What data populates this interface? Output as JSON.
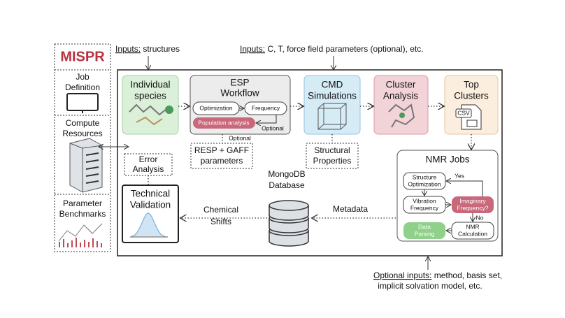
{
  "sidebar": {
    "logo": "MISPR",
    "items": [
      {
        "lines": [
          "Job",
          "Definition"
        ]
      },
      {
        "lines": [
          "Compute",
          "Resources"
        ]
      },
      {
        "lines": [
          "Parameter",
          "Benchmarks"
        ]
      }
    ]
  },
  "inputs": [
    {
      "label": "Inputs:",
      "text": " structures"
    },
    {
      "label": "Inputs:",
      "text": " C, T, force field parameters (optional), etc."
    }
  ],
  "steps": [
    {
      "lines": [
        "Individual",
        "species"
      ]
    },
    {
      "lines": [
        "ESP",
        "Workflow"
      ],
      "substeps": [
        "Optimization",
        "Frequency",
        "Population analysis"
      ],
      "optional": "Optional"
    },
    {
      "lines": [
        "CMD",
        "Simulations"
      ]
    },
    {
      "lines": [
        "Cluster",
        "Analysis"
      ]
    },
    {
      "lines": [
        "Top",
        "Clusters"
      ],
      "icon": "CSV"
    }
  ],
  "outputs": [
    {
      "note": "Optional",
      "lines": [
        "RESP + GAFF",
        "parameters"
      ]
    },
    {
      "lines": [
        "Structural",
        "Properties"
      ]
    }
  ],
  "nmr": {
    "title": "NMR Jobs",
    "nodes": [
      {
        "lines": [
          "Structure",
          "Optimization"
        ]
      },
      {
        "lines": [
          "Vibration",
          "Frequency"
        ]
      },
      {
        "lines": [
          "Imaginary",
          "Frequency?"
        ]
      },
      {
        "lines": [
          "NMR",
          "Calculation"
        ]
      },
      {
        "lines": [
          "Data",
          "Parsing"
        ]
      }
    ],
    "yes": "Yes",
    "no": "No"
  },
  "database": {
    "lines": [
      "MongoDB",
      "Database"
    ]
  },
  "metadata": "Metadata",
  "shifts": {
    "lines": [
      "Chemical",
      "Shifts"
    ]
  },
  "validation": {
    "lines": [
      "Technical",
      "Validation"
    ]
  },
  "error": {
    "lines": [
      "Error",
      "Analysis"
    ]
  },
  "optional_inputs": {
    "label": "Optional inputs:",
    "lines": [
      " method, basis set,",
      "implicit solvation model, etc."
    ]
  }
}
